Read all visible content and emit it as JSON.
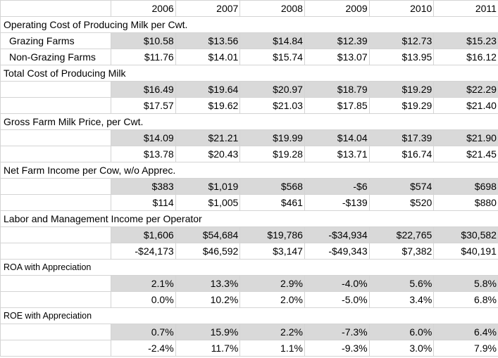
{
  "years": [
    "2006",
    "2007",
    "2008",
    "2009",
    "2010",
    "2011"
  ],
  "sections": [
    {
      "title": "Operating Cost of Producing Milk per Cwt.",
      "rows": [
        {
          "label": "Grazing Farms",
          "values": [
            "$10.58",
            "$13.56",
            "$14.84",
            "$12.39",
            "$12.73",
            "$15.23"
          ]
        },
        {
          "label": "Non-Grazing Farms",
          "values": [
            "$11.76",
            "$14.01",
            "$15.74",
            "$13.07",
            "$13.95",
            "$16.12"
          ]
        }
      ]
    },
    {
      "title": "Total Cost of Producing Milk",
      "rows": [
        {
          "label": "",
          "values": [
            "$16.49",
            "$19.64",
            "$20.97",
            "$18.79",
            "$19.29",
            "$22.29"
          ]
        },
        {
          "label": "",
          "values": [
            "$17.57",
            "$19.62",
            "$21.03",
            "$17.85",
            "$19.29",
            "$21.40"
          ]
        }
      ]
    },
    {
      "title": "Gross Farm Milk Price, per Cwt.",
      "rows": [
        {
          "label": "",
          "values": [
            "$14.09",
            "$21.21",
            "$19.99",
            "$14.04",
            "$17.39",
            "$21.90"
          ]
        },
        {
          "label": "",
          "values": [
            "$13.78",
            "$20.43",
            "$19.28",
            "$13.71",
            "$16.74",
            "$21.45"
          ]
        }
      ]
    },
    {
      "title": "Net Farm Income per Cow, w/o Apprec.",
      "rows": [
        {
          "label": "",
          "values": [
            "$383",
            "$1,019",
            "$568",
            "-$6",
            "$574",
            "$698"
          ]
        },
        {
          "label": "",
          "values": [
            "$114",
            "$1,005",
            "$461",
            "-$139",
            "$520",
            "$880"
          ]
        }
      ]
    },
    {
      "title": "Labor and Management Income per Operator",
      "rows": [
        {
          "label": "",
          "values": [
            "$1,606",
            "$54,684",
            "$19,786",
            "-$34,934",
            "$22,765",
            "$30,582"
          ]
        },
        {
          "label": "",
          "values": [
            "-$24,173",
            "$46,592",
            "$3,147",
            "-$49,343",
            "$7,382",
            "$40,191"
          ]
        }
      ]
    },
    {
      "title": "ROA with Appreciation",
      "rows": [
        {
          "label": "",
          "values": [
            "2.1%",
            "13.3%",
            "2.9%",
            "-4.0%",
            "5.6%",
            "5.8%"
          ]
        },
        {
          "label": "",
          "values": [
            "0.0%",
            "10.2%",
            "2.0%",
            "-5.0%",
            "3.4%",
            "6.8%"
          ]
        }
      ]
    },
    {
      "title": "ROE with Appreciation",
      "rows": [
        {
          "label": "",
          "values": [
            "0.7%",
            "15.9%",
            "2.2%",
            "-7.3%",
            "6.0%",
            "6.4%"
          ]
        },
        {
          "label": "",
          "values": [
            "-2.4%",
            "11.7%",
            "1.1%",
            "-9.3%",
            "3.0%",
            "7.9%"
          ]
        }
      ]
    }
  ]
}
